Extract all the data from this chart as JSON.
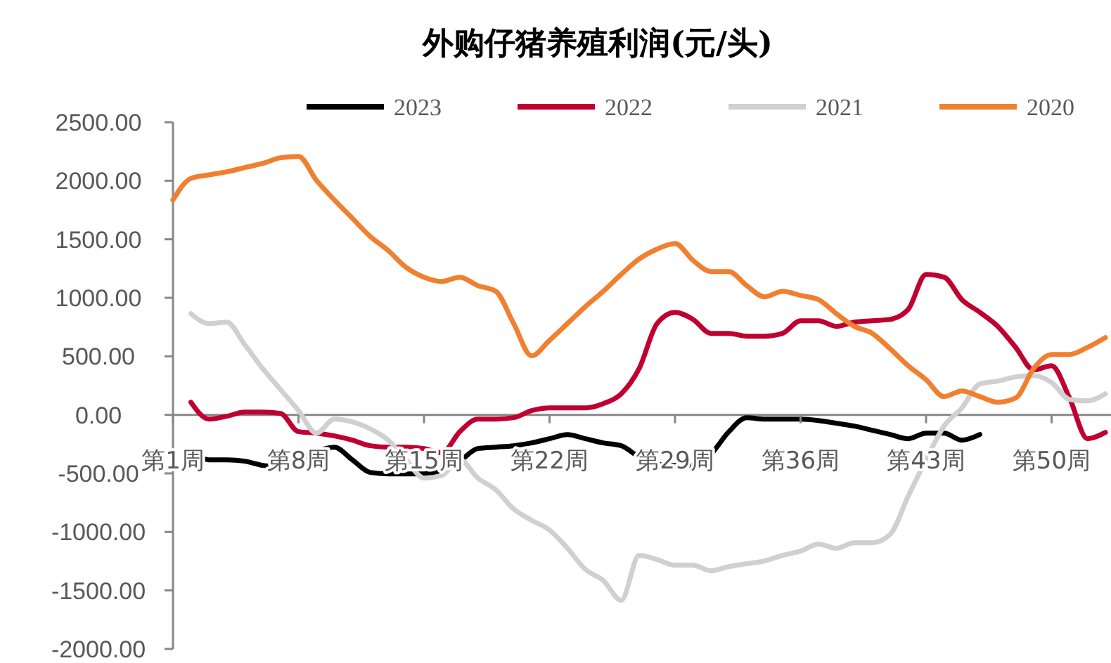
{
  "chart_data": {
    "type": "line",
    "title": "外购仔猪养殖利润(元/头)",
    "categories": [
      "第1周",
      null,
      null,
      null,
      null,
      null,
      null,
      "第8周",
      null,
      null,
      null,
      null,
      null,
      null,
      "第15周",
      null,
      null,
      null,
      null,
      null,
      null,
      "第22周",
      null,
      null,
      null,
      null,
      null,
      null,
      "第29周",
      null,
      null,
      null,
      null,
      null,
      null,
      "第36周",
      null,
      null,
      null,
      null,
      null,
      null,
      "第43周",
      null,
      null,
      null,
      null,
      null,
      null,
      "第50周",
      null,
      null,
      null
    ],
    "series": [
      {
        "name": "2023",
        "color": "#000000",
        "values": [
          null,
          -300,
          -384,
          -384,
          -396,
          -432,
          -444,
          -384,
          -312,
          -276,
          -384,
          -492,
          -504,
          -504,
          -504,
          -480,
          -396,
          -288,
          -276,
          -264,
          -240,
          -204,
          -168,
          -204,
          -240,
          -264,
          -360,
          -420,
          -432,
          -432,
          -336,
          -144,
          -24,
          -36,
          -36,
          -36,
          -48,
          -72,
          -96,
          -132,
          -168,
          -204,
          -156,
          -156,
          -216,
          -168,
          null,
          null,
          null,
          null,
          null,
          null,
          null
        ]
      },
      {
        "name": "2022",
        "color": "#c00030",
        "values": [
          null,
          108,
          -36,
          -12,
          24,
          24,
          12,
          -144,
          -156,
          -180,
          -216,
          -264,
          -276,
          -276,
          -288,
          -324,
          -144,
          -36,
          -36,
          -24,
          36,
          60,
          60,
          60,
          96,
          180,
          396,
          780,
          876,
          816,
          696,
          696,
          672,
          672,
          696,
          804,
          804,
          756,
          792,
          804,
          816,
          900,
          1200,
          1176,
          984,
          876,
          756,
          576,
          384,
          420,
          144,
          -204,
          -150
        ]
      },
      {
        "name": "2021",
        "color": "#d0d0d0",
        "values": [
          null,
          864,
          780,
          792,
          600,
          396,
          216,
          36,
          -156,
          -36,
          -60,
          -120,
          -216,
          -384,
          -540,
          -516,
          -384,
          -540,
          -640,
          -804,
          -900,
          -984,
          -1140,
          -1320,
          -1416,
          -1584,
          -1200,
          -1236,
          -1284,
          -1284,
          -1332,
          -1296,
          -1272,
          -1248,
          -1200,
          -1164,
          -1104,
          -1140,
          -1092,
          -1092,
          -1020,
          -696,
          -384,
          -96,
          60,
          264,
          288,
          324,
          336,
          276,
          132,
          120,
          180
        ]
      },
      {
        "name": "2020",
        "color": "#f08030",
        "values": [
          1836,
          2020,
          2050,
          2076,
          2112,
          2148,
          2196,
          2208,
          2004,
          1836,
          1680,
          1524,
          1404,
          1260,
          1176,
          1140,
          1176,
          1104,
          1056,
          780,
          504,
          636,
          780,
          924,
          1056,
          1200,
          1332,
          1416,
          1464,
          1320,
          1224,
          1224,
          1104,
          1008,
          1056,
          1020,
          984,
          864,
          756,
          696,
          564,
          420,
          300,
          156,
          204,
          156,
          108,
          144,
          396,
          516,
          516,
          576,
          660
        ]
      }
    ],
    "ylim": [
      -2000,
      2500
    ],
    "yticks": [
      {
        "value": -2000,
        "label": "-2000.00"
      },
      {
        "value": -1500,
        "label": "-1500.00"
      },
      {
        "value": -1000,
        "label": "-1000.00"
      },
      {
        "value": -500,
        "label": "-500.00"
      },
      {
        "value": 0,
        "label": "0.00"
      },
      {
        "value": 500,
        "label": "500.00"
      },
      {
        "value": 1000,
        "label": "1000.00"
      },
      {
        "value": 1500,
        "label": "1500.00"
      },
      {
        "value": 2000,
        "label": "2000.00"
      },
      {
        "value": 2500,
        "label": "2500.00"
      }
    ],
    "grid": false,
    "legend": "top",
    "line_style": "solid",
    "marker": "none"
  }
}
